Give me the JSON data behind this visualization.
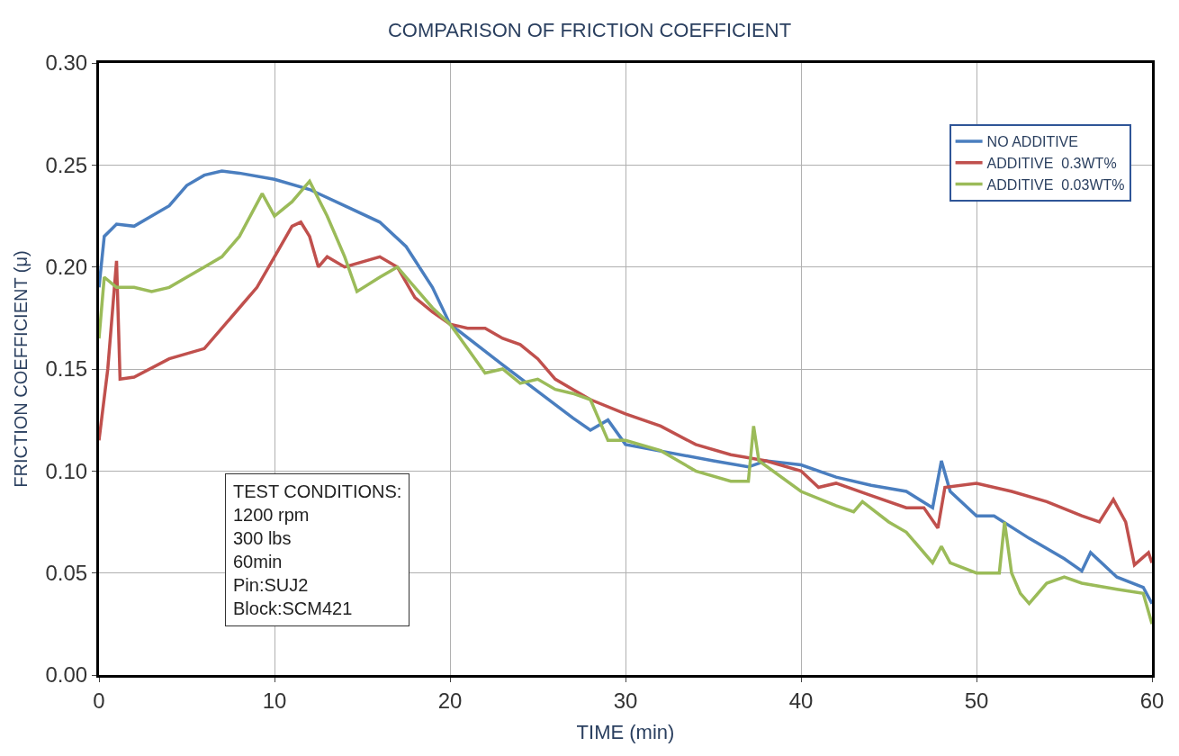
{
  "chart_data": {
    "type": "line",
    "title": "COMPARISON OF FRICTION COEFFICIENT",
    "xlabel": "TIME (min)",
    "ylabel": "FRICTION COEFFICIENT (μ)",
    "xlim": [
      0,
      60
    ],
    "xticks": [
      0,
      10,
      20,
      30,
      40,
      50,
      60
    ],
    "ylim": [
      0,
      0.3
    ],
    "yticks": [
      {
        "value": 0,
        "label": "0.00"
      },
      {
        "value": 0.05,
        "label": "0.05"
      },
      {
        "value": 0.1,
        "label": "0.10"
      },
      {
        "value": 0.15,
        "label": "0.15"
      },
      {
        "value": 0.2,
        "label": "0.20"
      },
      {
        "value": 0.25,
        "label": "0.25"
      },
      {
        "value": 0.3,
        "label": "0.30"
      }
    ],
    "grid": true,
    "legend": "top right",
    "line_style": "solid",
    "marker": "none",
    "annotations": [
      "TEST CONDITIONS:\n1200 rpm\n300 lbs\n60min\nPin:SUJ2\nBlock:SCM421"
    ],
    "series": [
      {
        "name": "NO ADDITIVE",
        "color": "#4a7ebf",
        "x": [
          0,
          0.3,
          1,
          2,
          3,
          4,
          5,
          6,
          7,
          8,
          10,
          12,
          14,
          16,
          17.5,
          19,
          20,
          23,
          25,
          27,
          28,
          29,
          30,
          35,
          37,
          38,
          40,
          42,
          44,
          46,
          47.5,
          48,
          48.5,
          50,
          51,
          53,
          55,
          56,
          56.5,
          58,
          59.5,
          60
        ],
        "values": [
          0.19,
          0.215,
          0.221,
          0.22,
          0.225,
          0.23,
          0.24,
          0.245,
          0.247,
          0.246,
          0.243,
          0.238,
          0.23,
          0.222,
          0.21,
          0.19,
          0.172,
          0.152,
          0.139,
          0.126,
          0.12,
          0.125,
          0.113,
          0.105,
          0.102,
          0.105,
          0.103,
          0.097,
          0.093,
          0.09,
          0.082,
          0.105,
          0.09,
          0.078,
          0.078,
          0.067,
          0.057,
          0.051,
          0.06,
          0.048,
          0.043,
          0.035
        ]
      },
      {
        "name": "ADDITIVE  0.3WT%",
        "color": "#c0504d",
        "x": [
          0,
          0.5,
          1,
          1.2,
          2,
          4,
          6,
          7,
          8,
          9,
          10,
          11,
          11.5,
          12,
          12.5,
          13,
          14,
          16,
          17,
          18,
          19,
          20,
          21,
          22,
          23,
          24,
          25,
          26,
          27,
          28,
          30,
          32,
          34,
          36,
          38,
          40,
          41,
          42,
          44,
          46,
          47,
          47.8,
          48.2,
          50,
          52,
          54,
          56,
          57,
          57.8,
          58.5,
          59,
          59.8,
          60
        ],
        "values": [
          0.115,
          0.15,
          0.203,
          0.145,
          0.146,
          0.155,
          0.16,
          0.17,
          0.18,
          0.19,
          0.205,
          0.22,
          0.222,
          0.215,
          0.2,
          0.205,
          0.2,
          0.205,
          0.2,
          0.185,
          0.178,
          0.172,
          0.17,
          0.17,
          0.165,
          0.162,
          0.155,
          0.145,
          0.14,
          0.135,
          0.128,
          0.122,
          0.113,
          0.108,
          0.105,
          0.1,
          0.092,
          0.094,
          0.088,
          0.082,
          0.082,
          0.072,
          0.092,
          0.094,
          0.09,
          0.085,
          0.078,
          0.075,
          0.086,
          0.075,
          0.054,
          0.06,
          0.055
        ]
      },
      {
        "name": "ADDITIVE  0.03WT%",
        "color": "#9bbb59",
        "x": [
          0,
          0.3,
          1,
          2,
          3,
          4,
          5,
          6,
          7,
          8,
          9.3,
          10,
          11,
          12,
          13,
          14,
          14.7,
          16,
          17,
          18,
          19,
          20,
          21,
          22,
          23,
          24,
          25,
          26,
          27,
          28,
          29,
          30,
          32,
          34,
          36,
          37,
          37.3,
          37.6,
          40,
          42,
          43,
          43.5,
          45,
          46,
          47,
          47.5,
          48,
          48.5,
          50,
          51.3,
          51.6,
          52,
          52.5,
          53,
          54,
          55,
          56,
          58,
          59.5,
          60
        ],
        "values": [
          0.165,
          0.195,
          0.19,
          0.19,
          0.188,
          0.19,
          0.195,
          0.2,
          0.205,
          0.215,
          0.236,
          0.225,
          0.232,
          0.242,
          0.225,
          0.205,
          0.188,
          0.195,
          0.2,
          0.19,
          0.18,
          0.172,
          0.16,
          0.148,
          0.15,
          0.143,
          0.145,
          0.14,
          0.138,
          0.135,
          0.115,
          0.115,
          0.11,
          0.1,
          0.095,
          0.095,
          0.122,
          0.105,
          0.09,
          0.083,
          0.08,
          0.085,
          0.075,
          0.07,
          0.06,
          0.055,
          0.063,
          0.055,
          0.05,
          0.05,
          0.075,
          0.05,
          0.04,
          0.035,
          0.045,
          0.048,
          0.045,
          0.042,
          0.04,
          0.025
        ]
      }
    ]
  }
}
